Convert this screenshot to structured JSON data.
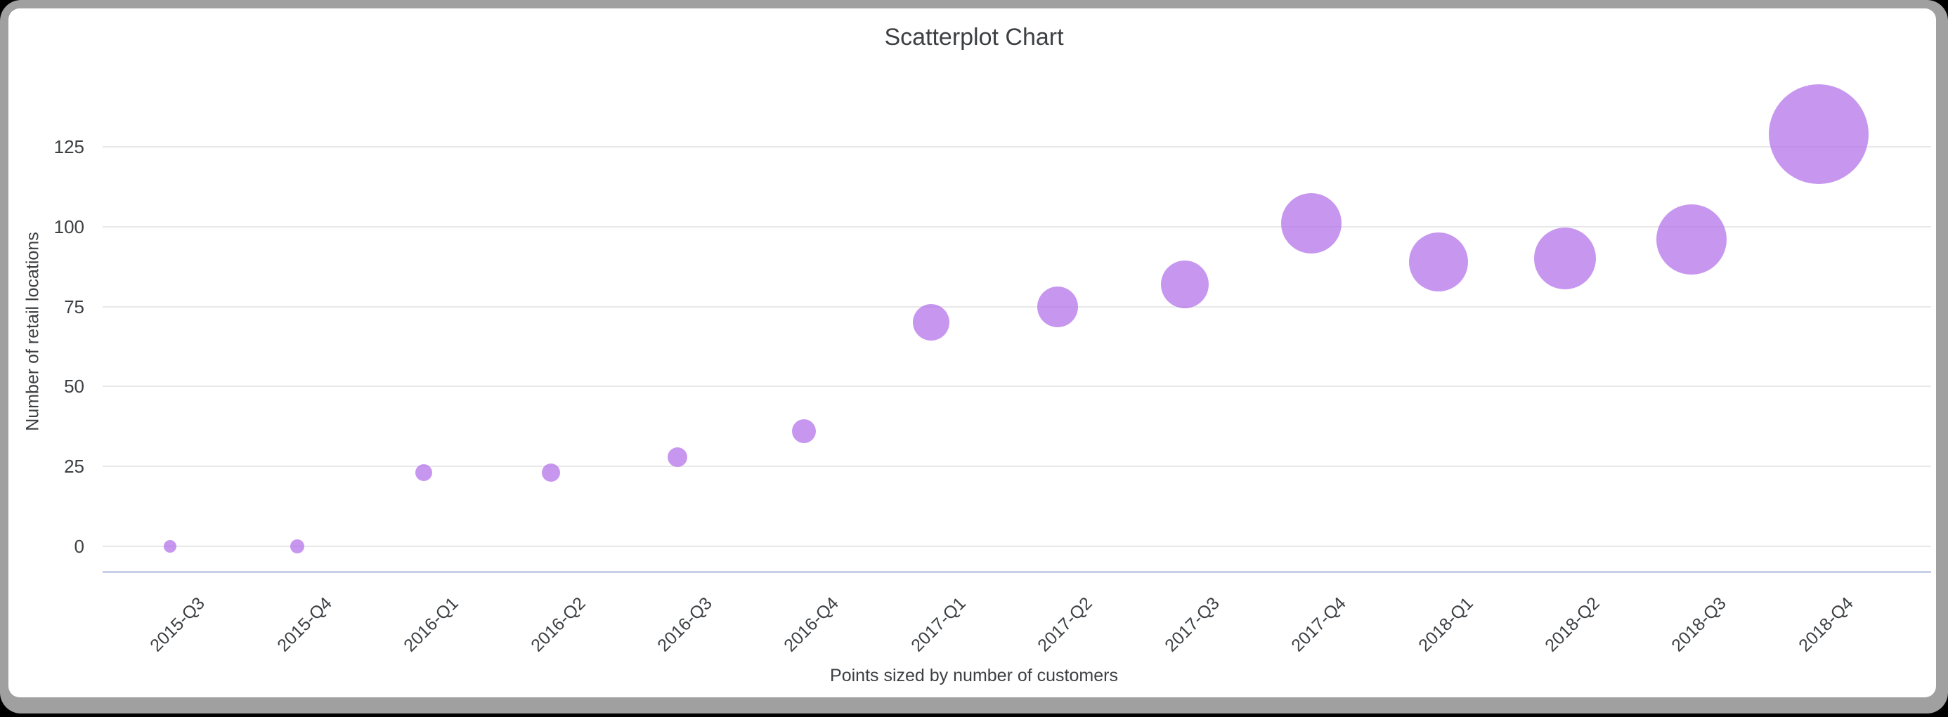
{
  "window": {
    "background": "#000000",
    "frame_color": "#a0a0a0",
    "card_color": "#ffffff"
  },
  "chart_data": {
    "type": "scatter",
    "title": "Scatterplot Chart",
    "xlabel": "Points sized by number of customers",
    "ylabel": "Number of retail locations",
    "categories": [
      "2015-Q3",
      "2015-Q4",
      "2016-Q1",
      "2016-Q2",
      "2016-Q3",
      "2016-Q4",
      "2017-Q1",
      "2017-Q2",
      "2017-Q3",
      "2017-Q4",
      "2018-Q1",
      "2018-Q2",
      "2018-Q3",
      "2018-Q4"
    ],
    "series": [
      {
        "name": "Number of retail locations",
        "values": [
          0,
          0,
          23,
          23,
          28,
          36,
          70,
          75,
          82,
          101,
          89,
          90,
          96,
          129
        ],
        "point_radius_px": [
          9,
          10,
          12,
          13,
          14,
          17,
          26,
          29,
          34,
          43,
          42,
          44,
          50,
          71
        ]
      }
    ],
    "size_by": "number of customers",
    "yticks": [
      0,
      25,
      50,
      75,
      100,
      125
    ],
    "ylim": [
      0,
      137
    ],
    "grid": true,
    "legend": "none",
    "colors": {
      "point": "rgba(178,112,233,0.73)",
      "gridline": "#e8e8e8",
      "axis_line": "#c7d0e8",
      "text": "#3c4043"
    }
  }
}
